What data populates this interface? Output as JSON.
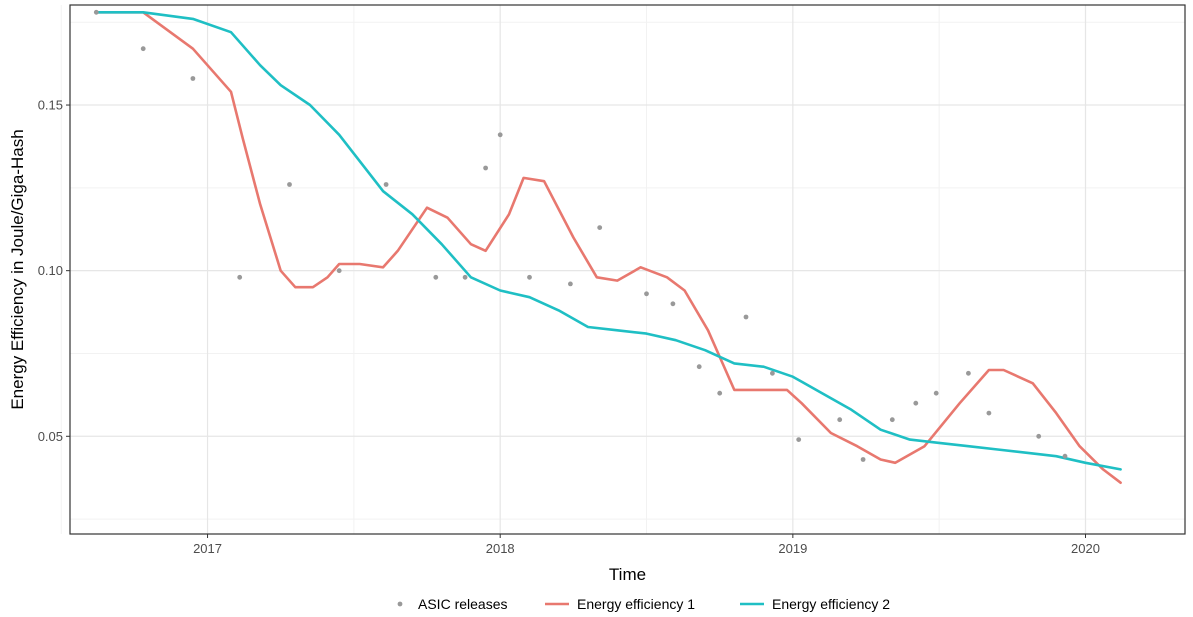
{
  "chart_data": {
    "type": "line",
    "xlabel": "Time",
    "ylabel": "Energy Efficiency in Joule/Giga-Hash",
    "xlim": [
      2016.53,
      2020.34
    ],
    "ylim": [
      0.0205,
      0.1802
    ],
    "x_ticks": [
      2017,
      2018,
      2019,
      2020
    ],
    "x_tick_labels": [
      "2017",
      "2018",
      "2019",
      "2020"
    ],
    "y_ticks": [
      0.05,
      0.1,
      0.15
    ],
    "y_tick_labels": [
      "0.05",
      "0.10",
      "0.15"
    ],
    "x_minor": [
      2016.5,
      2017.5,
      2018.5,
      2019.5
    ],
    "y_minor": [
      0.025,
      0.075,
      0.125,
      0.175
    ],
    "grid": true,
    "legend_position": "bottom",
    "scatter": {
      "name": "ASIC releases",
      "color": "#999999",
      "points": [
        [
          2016.62,
          0.178
        ],
        [
          2016.78,
          0.167
        ],
        [
          2016.95,
          0.158
        ],
        [
          2017.11,
          0.098
        ],
        [
          2017.28,
          0.126
        ],
        [
          2017.45,
          0.1
        ],
        [
          2017.61,
          0.126
        ],
        [
          2017.78,
          0.098
        ],
        [
          2017.88,
          0.098
        ],
        [
          2017.95,
          0.131
        ],
        [
          2018.0,
          0.141
        ],
        [
          2018.1,
          0.098
        ],
        [
          2018.24,
          0.096
        ],
        [
          2018.34,
          0.113
        ],
        [
          2018.5,
          0.093
        ],
        [
          2018.59,
          0.09
        ],
        [
          2018.68,
          0.071
        ],
        [
          2018.75,
          0.063
        ],
        [
          2018.84,
          0.086
        ],
        [
          2018.93,
          0.069
        ],
        [
          2019.02,
          0.049
        ],
        [
          2019.16,
          0.055
        ],
        [
          2019.24,
          0.043
        ],
        [
          2019.34,
          0.055
        ],
        [
          2019.42,
          0.06
        ],
        [
          2019.49,
          0.063
        ],
        [
          2019.6,
          0.069
        ],
        [
          2019.67,
          0.057
        ],
        [
          2019.84,
          0.05
        ],
        [
          2019.93,
          0.044
        ]
      ]
    },
    "series": [
      {
        "name": "Energy efficiency 1",
        "color": "#E8786F",
        "x": [
          2016.62,
          2016.78,
          2016.95,
          2017.08,
          2017.12,
          2017.18,
          2017.25,
          2017.3,
          2017.36,
          2017.41,
          2017.45,
          2017.52,
          2017.6,
          2017.65,
          2017.75,
          2017.82,
          2017.9,
          2017.95,
          2018.03,
          2018.08,
          2018.15,
          2018.25,
          2018.33,
          2018.4,
          2018.48,
          2018.57,
          2018.63,
          2018.71,
          2018.76,
          2018.8,
          2018.86,
          2018.98,
          2019.03,
          2019.13,
          2019.22,
          2019.3,
          2019.35,
          2019.45,
          2019.57,
          2019.67,
          2019.72,
          2019.82,
          2019.9,
          2019.98,
          2020.06,
          2020.12
        ],
        "y": [
          0.178,
          0.178,
          0.167,
          0.154,
          0.14,
          0.12,
          0.1,
          0.095,
          0.095,
          0.098,
          0.102,
          0.102,
          0.101,
          0.106,
          0.119,
          0.116,
          0.108,
          0.106,
          0.117,
          0.128,
          0.127,
          0.11,
          0.098,
          0.097,
          0.101,
          0.098,
          0.094,
          0.082,
          0.072,
          0.064,
          0.064,
          0.064,
          0.06,
          0.051,
          0.047,
          0.043,
          0.042,
          0.047,
          0.06,
          0.07,
          0.07,
          0.066,
          0.057,
          0.047,
          0.04,
          0.036
        ]
      },
      {
        "name": "Energy efficiency 2",
        "color": "#1FBFC4",
        "x": [
          2016.62,
          2016.78,
          2016.95,
          2017.08,
          2017.18,
          2017.25,
          2017.35,
          2017.45,
          2017.6,
          2017.7,
          2017.8,
          2017.9,
          2018.0,
          2018.1,
          2018.2,
          2018.3,
          2018.4,
          2018.5,
          2018.6,
          2018.7,
          2018.8,
          2018.9,
          2019.0,
          2019.1,
          2019.2,
          2019.3,
          2019.4,
          2019.5,
          2019.6,
          2019.7,
          2019.8,
          2019.9,
          2020.0,
          2020.12
        ],
        "y": [
          0.178,
          0.178,
          0.176,
          0.172,
          0.162,
          0.156,
          0.15,
          0.141,
          0.124,
          0.117,
          0.108,
          0.098,
          0.094,
          0.092,
          0.088,
          0.083,
          0.082,
          0.081,
          0.079,
          0.076,
          0.072,
          0.071,
          0.068,
          0.063,
          0.058,
          0.052,
          0.049,
          0.048,
          0.047,
          0.046,
          0.045,
          0.044,
          0.042,
          0.04
        ]
      }
    ]
  },
  "legend": {
    "items": [
      {
        "label": "ASIC releases",
        "kind": "point",
        "color": "#999999"
      },
      {
        "label": "Energy efficiency 1",
        "kind": "line",
        "color": "#E8786F"
      },
      {
        "label": "Energy efficiency 2",
        "kind": "line",
        "color": "#1FBFC4"
      }
    ]
  }
}
